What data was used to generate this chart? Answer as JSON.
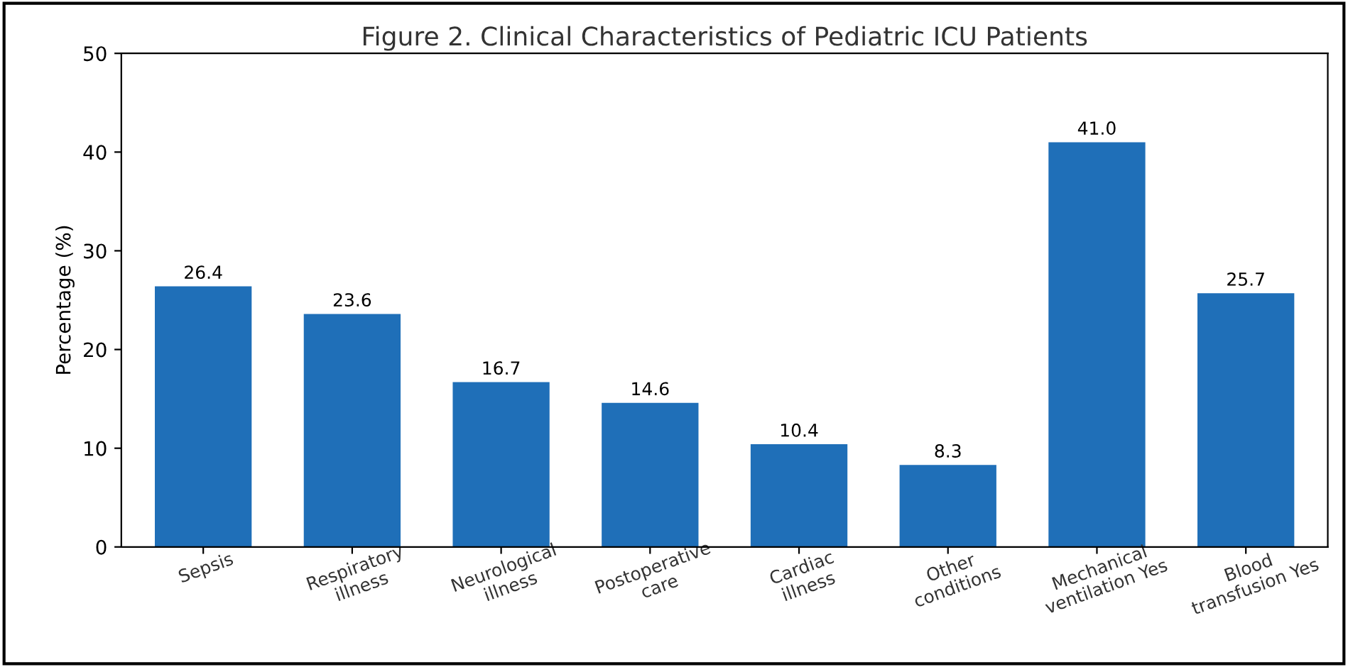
{
  "chart_data": {
    "type": "bar",
    "title": "Figure 2. Clinical Characteristics of Pediatric ICU Patients",
    "ylabel": "Percentage (%)",
    "categories": [
      "Sepsis",
      "Respiratory\nillness",
      "Neurological\nillness",
      "Postoperative\ncare",
      "Cardiac\nillness",
      "Other\nconditions",
      "Mechanical\nventilation Yes",
      "Blood\ntransfusion Yes"
    ],
    "values": [
      26.4,
      23.6,
      16.7,
      14.6,
      10.4,
      8.3,
      41.0,
      25.7
    ],
    "value_labels": [
      "26.4",
      "23.6",
      "16.7",
      "14.6",
      "10.4",
      "8.3",
      "41.0",
      "25.7"
    ],
    "color": "#1f6fb8",
    "ylim": [
      0,
      50
    ],
    "yticks": [
      0,
      10,
      20,
      30,
      40,
      50
    ],
    "grid": false
  }
}
